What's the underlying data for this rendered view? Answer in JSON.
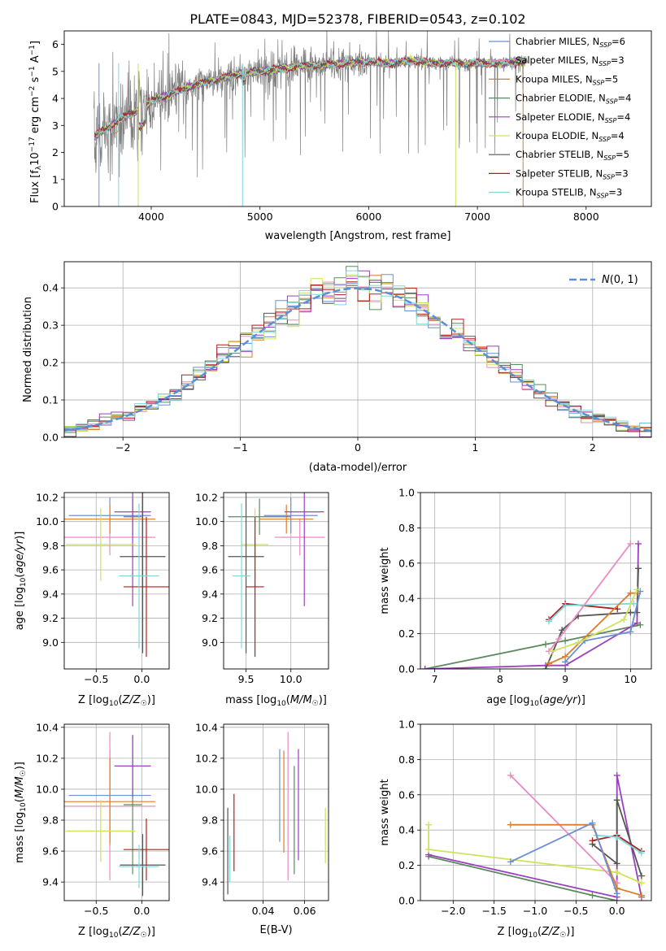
{
  "figure": {
    "title": "PLATE=0843, MJD=52378, FIBERID=0543, z=0.102"
  },
  "colors": {
    "Chabrier MILES": "#6a8fd6",
    "Salpeter MILES": "#e98bc6",
    "Kroupa MILES": "#e07b2a",
    "Chabrier ELODIE": "#5b8a5e",
    "Salpeter ELODIE": "#9b3fbf",
    "Kroupa ELODIE": "#cfe25a",
    "Chabrier STELIB": "#555555",
    "Salpeter STELIB": "#b21f1f",
    "Kroupa STELIB": "#7fd8d8",
    "data": "#808080",
    "gaussian": "#5b8fd6",
    "grid": "#b0b0b0"
  },
  "chart_data": [
    {
      "id": "spectrum",
      "type": "line",
      "title": "PLATE=0843, MJD=52378, FIBERID=0543, z=0.102",
      "xlabel": "wavelength [Angstrom, rest frame]",
      "ylabel": "Flux [f_λ 10^-17 erg cm^-2 s^-1 A^-1]",
      "xlim": [
        3200,
        8600
      ],
      "ylim": [
        0,
        6.5
      ],
      "xticks": [
        4000,
        5000,
        6000,
        7000,
        8000
      ],
      "yticks": [
        0,
        1,
        2,
        3,
        4,
        5,
        6
      ],
      "grid": false,
      "legend_position": "top-right",
      "legend": [
        {
          "base": "Chabrier MILES, N",
          "sub": "SSP",
          "tail": "=6"
        },
        {
          "base": "Salpeter MILES, N",
          "sub": "SSP",
          "tail": "=3"
        },
        {
          "base": "Kroupa MILES, N",
          "sub": "SSP",
          "tail": "=5"
        },
        {
          "base": "Chabrier ELODIE, N",
          "sub": "SSP",
          "tail": "=4"
        },
        {
          "base": "Salpeter ELODIE, N",
          "sub": "SSP",
          "tail": "=4"
        },
        {
          "base": "Kroupa ELODIE, N",
          "sub": "SSP",
          "tail": "=4"
        },
        {
          "base": "Chabrier STELIB, N",
          "sub": "SSP",
          "tail": "=5"
        },
        {
          "base": "Salpeter STELIB, N",
          "sub": "SSP",
          "tail": "=3"
        },
        {
          "base": "Kroupa STELIB, N",
          "sub": "SSP",
          "tail": "=3"
        }
      ],
      "continuum": {
        "x": [
          3470,
          3600,
          3700,
          3800,
          3900,
          4000,
          4200,
          4400,
          4600,
          4800,
          5000,
          5200,
          5400,
          5600,
          5800,
          6000,
          6200,
          6400,
          6600,
          6800,
          7000,
          7200,
          7400
        ],
        "y": [
          2.6,
          2.9,
          3.2,
          3.4,
          3.6,
          3.9,
          4.2,
          4.5,
          4.7,
          4.9,
          5.0,
          5.1,
          5.2,
          5.25,
          5.3,
          5.35,
          5.3,
          5.4,
          5.3,
          5.3,
          5.3,
          5.3,
          5.35
        ]
      }
    },
    {
      "id": "residuals",
      "type": "line",
      "xlabel": "(data-model)/error",
      "ylabel": "Normed distribution",
      "xlim": [
        -2.5,
        2.5
      ],
      "ylim": [
        0,
        0.47
      ],
      "xticks": [
        -2,
        -1,
        0,
        1,
        2
      ],
      "yticks": [
        0.0,
        0.1,
        0.2,
        0.3,
        0.4
      ],
      "grid": true,
      "legend_position": "top-right",
      "legend": [
        "N(0, 1)"
      ],
      "bin_width": 0.1
    },
    {
      "id": "age-vs-Z",
      "type": "scatter",
      "xlabel": "Z [log10(Z/Z☉)]",
      "ylabel": "age [log10(age/yr)]",
      "xlim": [
        -0.85,
        0.3
      ],
      "ylim": [
        8.78,
        10.24
      ],
      "xticks": [
        -0.5,
        0.0
      ],
      "yticks": [
        9.0,
        9.2,
        9.4,
        9.6,
        9.8,
        10.0,
        10.2
      ],
      "grid": true,
      "points": [
        {
          "model": "Chabrier MILES",
          "x": -0.35,
          "y": 10.05,
          "xerr": 0.45,
          "yerr": 0.15
        },
        {
          "model": "Salpeter MILES",
          "x": -0.35,
          "y": 9.87,
          "xerr": 0.5,
          "yerr": 0.15
        },
        {
          "model": "Kroupa MILES",
          "x": -0.35,
          "y": 10.02,
          "xerr": 0.5,
          "yerr": 0.12
        },
        {
          "model": "Chabrier ELODIE",
          "x": -0.1,
          "y": 10.04,
          "xerr": 0.1,
          "yerr": 0.15
        },
        {
          "model": "Salpeter ELODIE",
          "x": -0.1,
          "y": 10.08,
          "xerr": 0.2,
          "yerr": 0.78
        },
        {
          "model": "Kroupa ELODIE",
          "x": -0.45,
          "y": 9.81,
          "xerr": 0.38,
          "yerr": 0.3
        },
        {
          "model": "Chabrier STELIB",
          "x": 0.01,
          "y": 9.71,
          "xerr": 0.25,
          "yerr": 0.8
        },
        {
          "model": "Salpeter STELIB",
          "x": 0.05,
          "y": 9.46,
          "xerr": 0.25,
          "yerr": 0.58
        },
        {
          "model": "Kroupa STELIB",
          "x": -0.03,
          "y": 9.55,
          "xerr": 0.22,
          "yerr": 0.6
        }
      ]
    },
    {
      "id": "age-vs-mass",
      "type": "scatter",
      "xlabel": "mass [log10(M/M☉)]",
      "ylabel": "",
      "xlim": [
        9.25,
        10.42
      ],
      "ylim": [
        8.78,
        10.24
      ],
      "xticks": [
        9.5,
        10.0
      ],
      "yticks": [
        9.0,
        9.2,
        9.4,
        9.6,
        9.8,
        10.0,
        10.2
      ],
      "grid": true,
      "points": [
        {
          "model": "Chabrier MILES",
          "x": 10.0,
          "y": 10.05,
          "xerr": 0.3,
          "yerr": 0.15
        },
        {
          "model": "Salpeter MILES",
          "x": 10.1,
          "y": 9.87,
          "xerr": 0.28,
          "yerr": 0.15
        },
        {
          "model": "Kroupa MILES",
          "x": 9.95,
          "y": 10.02,
          "xerr": 0.3,
          "yerr": 0.12
        },
        {
          "model": "Chabrier ELODIE",
          "x": 9.65,
          "y": 10.04,
          "xerr": 0.35,
          "yerr": 0.15
        },
        {
          "model": "Salpeter ELODIE",
          "x": 10.15,
          "y": 10.08,
          "xerr": 0.22,
          "yerr": 0.78
        },
        {
          "model": "Kroupa ELODIE",
          "x": 9.6,
          "y": 9.81,
          "xerr": 0.15,
          "yerr": 0.3
        },
        {
          "model": "Chabrier STELIB",
          "x": 9.5,
          "y": 9.71,
          "xerr": 0.2,
          "yerr": 0.8
        },
        {
          "model": "Salpeter STELIB",
          "x": 9.6,
          "y": 9.46,
          "xerr": 0.1,
          "yerr": 0.58
        },
        {
          "model": "Kroupa STELIB",
          "x": 9.45,
          "y": 9.55,
          "xerr": 0.1,
          "yerr": 0.6
        }
      ]
    },
    {
      "id": "massweight-vs-age",
      "type": "line",
      "xlabel": "age [log10(age/yr)]",
      "ylabel": "mass weight",
      "xlim": [
        6.78,
        10.32
      ],
      "ylim": [
        0,
        1.0
      ],
      "xticks": [
        7,
        8,
        9,
        10
      ],
      "yticks": [
        0.0,
        0.2,
        0.4,
        0.6,
        0.8,
        1.0
      ],
      "grid": true,
      "series": [
        {
          "model": "Chabrier ELODIE",
          "x": [
            6.85,
            8.7,
            9.0,
            10.15
          ],
          "y": [
            0.0,
            0.14,
            0.16,
            0.25
          ]
        },
        {
          "model": "Salpeter ELODIE",
          "x": [
            6.85,
            8.7,
            9.0,
            10.1,
            10.12
          ],
          "y": [
            0.0,
            0.02,
            0.02,
            0.26,
            0.71
          ]
        },
        {
          "model": "Chabrier STELIB",
          "x": [
            8.7,
            8.95,
            9.2,
            10.0,
            10.1,
            10.12
          ],
          "y": [
            0.0,
            0.22,
            0.3,
            0.32,
            0.32,
            0.57
          ]
        },
        {
          "model": "Salpeter STELIB",
          "x": [
            8.75,
            9.0,
            9.8
          ],
          "y": [
            0.28,
            0.37,
            0.34
          ]
        },
        {
          "model": "Kroupa STELIB",
          "x": [
            8.75,
            9.0,
            10.05
          ],
          "y": [
            0.27,
            0.36,
            0.37
          ]
        },
        {
          "model": "Salpeter MILES",
          "x": [
            8.75,
            8.9,
            10.0
          ],
          "y": [
            0.1,
            0.17,
            0.71
          ]
        },
        {
          "model": "Chabrier MILES",
          "x": [
            9.0,
            9.3,
            10.0,
            10.15
          ],
          "y": [
            0.04,
            0.16,
            0.21,
            0.44
          ]
        },
        {
          "model": "Kroupa MILES",
          "x": [
            8.75,
            9.0,
            10.0,
            10.1
          ],
          "y": [
            0.03,
            0.07,
            0.43,
            0.43
          ]
        },
        {
          "model": "Kroupa ELODIE",
          "x": [
            8.8,
            9.2,
            9.9,
            10.1
          ],
          "y": [
            0.1,
            0.15,
            0.28,
            0.45
          ]
        }
      ]
    },
    {
      "id": "mass-vs-Z",
      "type": "scatter",
      "xlabel": "Z [log10(Z/Z☉)]",
      "ylabel": "mass [log10(M/M☉)]",
      "xlim": [
        -0.85,
        0.3
      ],
      "ylim": [
        9.28,
        10.42
      ],
      "xticks": [
        -0.5,
        0.0
      ],
      "yticks": [
        9.4,
        9.6,
        9.8,
        10.0,
        10.2,
        10.4
      ],
      "grid": true,
      "points": [
        {
          "model": "Chabrier MILES",
          "x": -0.35,
          "y": 9.96,
          "xerr": 0.45,
          "yerr": 0.3
        },
        {
          "model": "Salpeter MILES",
          "x": -0.35,
          "y": 9.89,
          "xerr": 0.5,
          "yerr": 0.48
        },
        {
          "model": "Kroupa MILES",
          "x": -0.35,
          "y": 9.92,
          "xerr": 0.5,
          "yerr": 0.28
        },
        {
          "model": "Chabrier ELODIE",
          "x": -0.1,
          "y": 9.9,
          "xerr": 0.1,
          "yerr": 0.45
        },
        {
          "model": "Salpeter ELODIE",
          "x": -0.1,
          "y": 10.15,
          "xerr": 0.2,
          "yerr": 0.2
        },
        {
          "model": "Kroupa ELODIE",
          "x": -0.45,
          "y": 9.73,
          "xerr": 0.38,
          "yerr": 0.2
        },
        {
          "model": "Chabrier STELIB",
          "x": 0.01,
          "y": 9.51,
          "xerr": 0.25,
          "yerr": 0.2
        },
        {
          "model": "Salpeter STELIB",
          "x": 0.05,
          "y": 9.61,
          "xerr": 0.25,
          "yerr": 0.2
        },
        {
          "model": "Kroupa STELIB",
          "x": -0.03,
          "y": 9.5,
          "xerr": 0.22,
          "yerr": 0.14
        }
      ]
    },
    {
      "id": "mass-vs-ebv",
      "type": "scatter",
      "xlabel": "E(B-V)",
      "ylabel": "",
      "xlim": [
        0.021,
        0.0715
      ],
      "ylim": [
        9.28,
        10.42
      ],
      "xticks": [
        0.04,
        0.06
      ],
      "yticks": [
        9.4,
        9.6,
        9.8,
        10.0,
        10.2,
        10.4
      ],
      "grid": true,
      "points": [
        {
          "model": "Chabrier MILES",
          "x": 0.048,
          "y": 9.96,
          "xerr": 0,
          "yerr": 0.3
        },
        {
          "model": "Salpeter MILES",
          "x": 0.052,
          "y": 9.89,
          "xerr": 0,
          "yerr": 0.48
        },
        {
          "model": "Kroupa MILES",
          "x": 0.05,
          "y": 9.92,
          "xerr": 0,
          "yerr": 0.33
        },
        {
          "model": "Chabrier ELODIE",
          "x": 0.055,
          "y": 9.8,
          "xerr": 0,
          "yerr": 0.35
        },
        {
          "model": "Salpeter ELODIE",
          "x": 0.057,
          "y": 9.9,
          "xerr": 0,
          "yerr": 0.36
        },
        {
          "model": "Kroupa ELODIE",
          "x": 0.07,
          "y": 9.7,
          "xerr": 0,
          "yerr": 0.18
        },
        {
          "model": "Chabrier STELIB",
          "x": 0.023,
          "y": 9.6,
          "xerr": 0,
          "yerr": 0.28
        },
        {
          "model": "Salpeter STELIB",
          "x": 0.026,
          "y": 9.72,
          "xerr": 0,
          "yerr": 0.25
        },
        {
          "model": "Kroupa STELIB",
          "x": 0.024,
          "y": 9.55,
          "xerr": 0,
          "yerr": 0.15
        }
      ]
    },
    {
      "id": "massweight-vs-Z",
      "type": "line",
      "xlabel": "Z [log10(Z/Z☉)]",
      "ylabel": "mass weight",
      "xlim": [
        -2.4,
        0.42
      ],
      "ylim": [
        0,
        1.0
      ],
      "xticks": [
        -2.0,
        -1.5,
        -1.0,
        -0.5,
        0.0
      ],
      "yticks": [
        0.0,
        0.2,
        0.4,
        0.6,
        0.8,
        1.0
      ],
      "grid": true,
      "series": [
        {
          "model": "Chabrier ELODIE",
          "x": [
            -2.3,
            -0.3,
            0.0
          ],
          "y": [
            0.25,
            0.03,
            0.0
          ]
        },
        {
          "model": "Salpeter ELODIE",
          "x": [
            -2.3,
            0.0,
            0.0,
            0.3
          ],
          "y": [
            0.26,
            0.02,
            0.71,
            0.02
          ]
        },
        {
          "model": "Kroupa ELODIE",
          "x": [
            -2.3,
            -2.3,
            0.0,
            0.3
          ],
          "y": [
            0.43,
            0.29,
            0.16,
            0.1
          ]
        },
        {
          "model": "Chabrier STELIB",
          "x": [
            -0.3,
            0.0,
            0.0,
            0.3
          ],
          "y": [
            0.32,
            0.21,
            0.57,
            0.14
          ]
        },
        {
          "model": "Salpeter STELIB",
          "x": [
            -0.3,
            0.0,
            0.3
          ],
          "y": [
            0.34,
            0.37,
            0.28
          ]
        },
        {
          "model": "Kroupa STELIB",
          "x": [
            -0.25,
            0.0,
            0.3
          ],
          "y": [
            0.37,
            0.36,
            0.27
          ]
        },
        {
          "model": "Salpeter MILES",
          "x": [
            -1.3,
            0.0
          ],
          "y": [
            0.71,
            0.1
          ]
        },
        {
          "model": "Kroupa MILES",
          "x": [
            -1.3,
            -0.3,
            0.0,
            0.3
          ],
          "y": [
            0.43,
            0.43,
            0.07,
            0.03
          ]
        },
        {
          "model": "Chabrier MILES",
          "x": [
            -1.3,
            -0.3,
            0.0
          ],
          "y": [
            0.22,
            0.44,
            0.04
          ]
        }
      ]
    }
  ]
}
